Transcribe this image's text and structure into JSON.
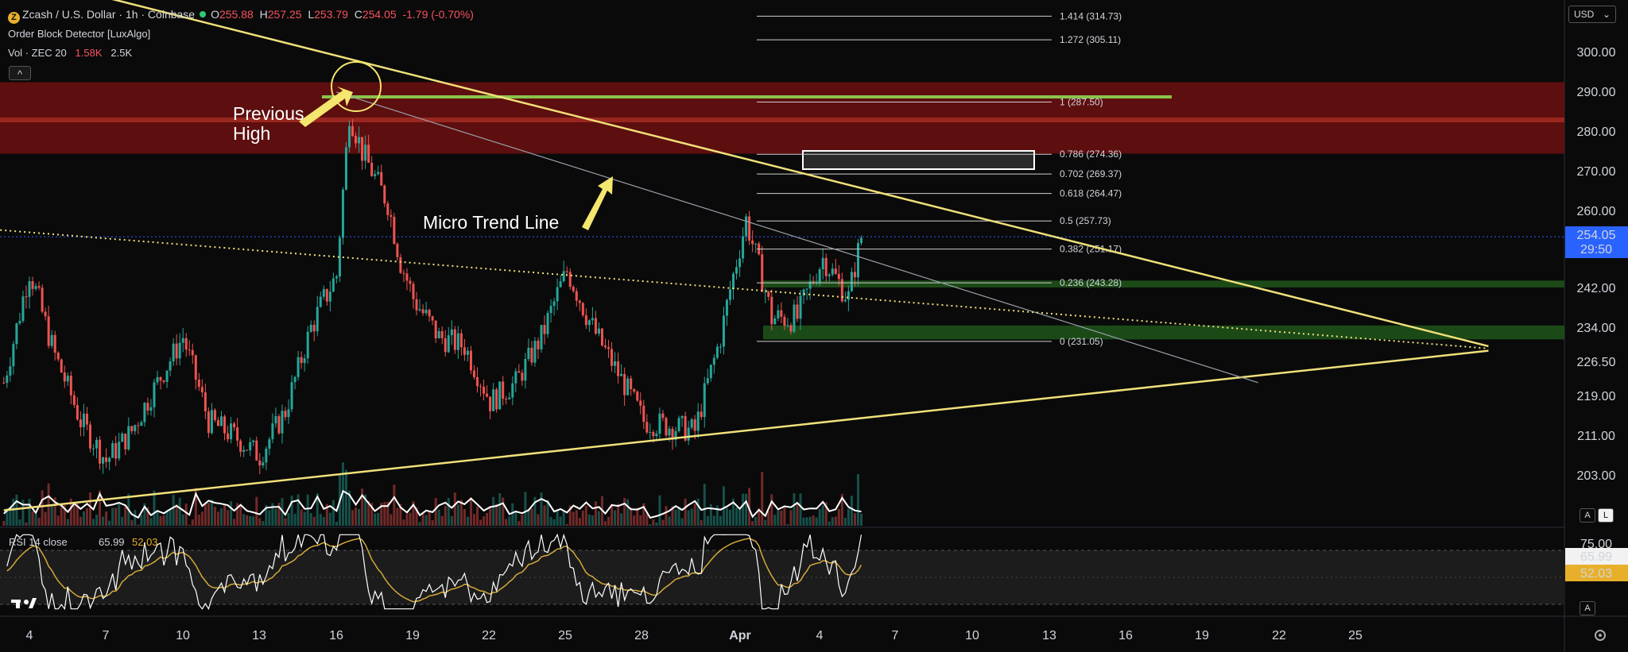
{
  "header": {
    "symbol_title": "Zcash / U.S. Dollar · 1h · Coinbase",
    "ohlc": {
      "o_label": "O",
      "o": "255.88",
      "h_label": "H",
      "h": "257.25",
      "l_label": "L",
      "l": "253.79",
      "c_label": "C",
      "c": "254.05",
      "change": "-1.79 (-0.70%)"
    },
    "indicator_1": "Order Block Detector [LuxAlgo]",
    "indicator_2_label": "Vol · ZEC 20",
    "indicator_2_v1": "1.58K",
    "indicator_2_v2": "2.5K",
    "collapse_glyph": "^"
  },
  "currency_selector": "USD",
  "price_axis": {
    "ticks": [
      "300.00",
      "290.00",
      "280.00",
      "270.00",
      "260.00",
      "242.00",
      "234.00",
      "226.50",
      "219.00",
      "211.00",
      "203.00"
    ],
    "current_price": "254.05",
    "countdown": "29:50"
  },
  "time_axis": {
    "labels": [
      "4",
      "7",
      "10",
      "13",
      "16",
      "19",
      "22",
      "25",
      "28",
      "Apr",
      "4",
      "7",
      "10",
      "13",
      "16",
      "19",
      "22",
      "25"
    ]
  },
  "scale_buttons": {
    "auto": "A",
    "log": "L"
  },
  "rsi": {
    "label": "RSI 14 close",
    "value": "65.99",
    "ma": "52.03",
    "tick_top": "75.00"
  },
  "annotations": {
    "previous_high": "Previous\nHigh",
    "micro_trend": "Micro Trend Line"
  },
  "fib_levels": [
    {
      "ratio": "1.414",
      "price": 314.73,
      "label": "1.414 (314.73)"
    },
    {
      "ratio": "1.272",
      "price": 305.11,
      "label": "1.272 (305.11)"
    },
    {
      "ratio": "1",
      "price": 287.5,
      "label": "1 (287.50)"
    },
    {
      "ratio": "0.786",
      "price": 274.36,
      "label": "0.786 (274.36)"
    },
    {
      "ratio": "0.702",
      "price": 269.37,
      "label": "0.702 (269.37)"
    },
    {
      "ratio": "0.618",
      "price": 264.47,
      "label": "0.618 (264.47)"
    },
    {
      "ratio": "0.5",
      "price": 257.73,
      "label": "0.5 (257.73)"
    },
    {
      "ratio": "0.382",
      "price": 251.17,
      "label": "0.382 (251.17)"
    },
    {
      "ratio": "0.236",
      "price": 243.28,
      "label": "0.236 (243.28)"
    },
    {
      "ratio": "0",
      "price": 231.05,
      "label": "0 (231.05)"
    }
  ],
  "colors": {
    "up": "#26a69a",
    "down": "#ef5350",
    "trendline": "#f0e07a",
    "resistance_zone": "#7a1010",
    "support_zone": "#1f5a1a",
    "green_line": "#8bc34a",
    "rsi_line": "#ffffff",
    "rsi_ma": "#d4a93a",
    "price_tag": "#2962ff"
  },
  "chart_data": {
    "type": "candlestick",
    "symbol": "Zcash / U.S. Dollar",
    "interval": "1h",
    "exchange": "Coinbase",
    "last": {
      "open": 255.88,
      "high": 257.25,
      "low": 253.79,
      "close": 254.05
    },
    "approx_price_path": [
      {
        "date": "Mar 3",
        "price": 222
      },
      {
        "date": "Mar 4",
        "price": 246
      },
      {
        "date": "Mar 5",
        "price": 228
      },
      {
        "date": "Mar 6",
        "price": 214
      },
      {
        "date": "Mar 7",
        "price": 206
      },
      {
        "date": "Mar 8",
        "price": 212
      },
      {
        "date": "Mar 10",
        "price": 232
      },
      {
        "date": "Mar 11",
        "price": 214
      },
      {
        "date": "Mar 12",
        "price": 211
      },
      {
        "date": "Mar 13",
        "price": 207
      },
      {
        "date": "Mar 14",
        "price": 216
      },
      {
        "date": "Mar 15",
        "price": 234
      },
      {
        "date": "Mar 16",
        "price": 245
      },
      {
        "date": "Mar 16 12h",
        "price": 285
      },
      {
        "date": "Mar 17",
        "price": 275
      },
      {
        "date": "Mar 18",
        "price": 262
      },
      {
        "date": "Mar 18 12h",
        "price": 248
      },
      {
        "date": "Mar 19",
        "price": 240
      },
      {
        "date": "Mar 20",
        "price": 232
      },
      {
        "date": "Mar 21",
        "price": 230
      },
      {
        "date": "Mar 22",
        "price": 218
      },
      {
        "date": "Mar 23",
        "price": 222
      },
      {
        "date": "Mar 24",
        "price": 232
      },
      {
        "date": "Mar 25",
        "price": 246
      },
      {
        "date": "Mar 26",
        "price": 234
      },
      {
        "date": "Mar 27",
        "price": 224
      },
      {
        "date": "Mar 28",
        "price": 214
      },
      {
        "date": "Mar 29",
        "price": 213
      },
      {
        "date": "Mar 30",
        "price": 212
      },
      {
        "date": "Mar 31",
        "price": 232
      },
      {
        "date": "Apr 1",
        "price": 258
      },
      {
        "date": "Apr 2",
        "price": 236
      },
      {
        "date": "Apr 3",
        "price": 236
      },
      {
        "date": "Apr 4",
        "price": 249
      },
      {
        "date": "Apr 5",
        "price": 240
      },
      {
        "date": "Apr 5 12h",
        "price": 254.05
      }
    ],
    "resistance_zones": [
      [
        274.5,
        292.5
      ]
    ],
    "support_zones": [
      [
        242.2,
        243.8
      ],
      [
        231.5,
        234.5
      ]
    ],
    "horizontal_line": 288.8,
    "trendlines": [
      {
        "name": "descending",
        "from": {
          "date": "Mar 1",
          "price": 338
        },
        "to": {
          "date": "Apr 30",
          "price": 230
        }
      },
      {
        "name": "ascending",
        "from": {
          "date": "Mar 3",
          "price": 196
        },
        "to": {
          "date": "Apr 30",
          "price": 229
        }
      },
      {
        "name": "micro",
        "from": {
          "date": "Mar 16",
          "price": 290
        },
        "to": {
          "date": "Apr 21",
          "price": 222
        }
      },
      {
        "name": "dotted",
        "from": {
          "date": "Mar 1",
          "price": 256.5
        },
        "to": {
          "date": "Apr 30",
          "price": 229.5
        }
      }
    ],
    "rsi_range": [
      20,
      80
    ],
    "yticks_display": [
      "300.00",
      "290.00",
      "280.00",
      "270.00",
      "260.00",
      "242.00",
      "234.00",
      "226.50",
      "219.00",
      "211.00",
      "203.00"
    ]
  }
}
